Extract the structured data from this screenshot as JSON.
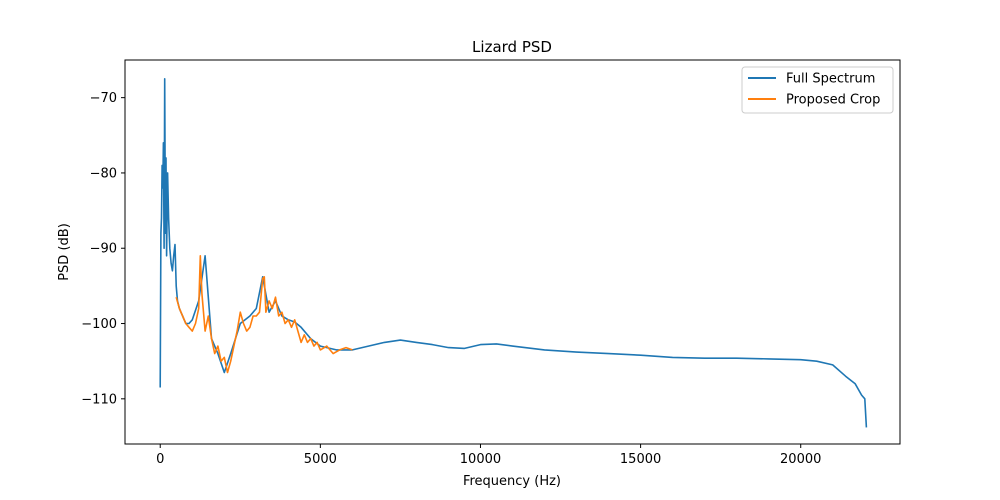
{
  "chart_data": {
    "type": "line",
    "title": "Lizard PSD",
    "xlabel": "Frequency (Hz)",
    "ylabel": "PSD (dB)",
    "xlim": [
      -1100,
      23100
    ],
    "ylim": [
      -116,
      -65
    ],
    "xticks": [
      0,
      5000,
      10000,
      15000,
      20000
    ],
    "yticks": [
      -70,
      -80,
      -90,
      -100,
      -110
    ],
    "grid": false,
    "legend": "top-right",
    "colors": {
      "full": "#1f77b4",
      "crop": "#ff7f0e"
    },
    "series": [
      {
        "name": "Full Spectrum",
        "color": "#1f77b4",
        "x": [
          0,
          20,
          40,
          60,
          80,
          100,
          120,
          140,
          160,
          180,
          200,
          230,
          260,
          300,
          340,
          380,
          420,
          460,
          500,
          540,
          600,
          700,
          800,
          900,
          1000,
          1200,
          1400,
          1600,
          1800,
          2000,
          2200,
          2500,
          2800,
          3000,
          3200,
          3400,
          3600,
          3800,
          4000,
          4200,
          4400,
          4700,
          5000,
          5500,
          6000,
          6500,
          7000,
          7500,
          8000,
          8500,
          9000,
          9500,
          10000,
          10500,
          11000,
          12000,
          13000,
          14000,
          15000,
          16000,
          17000,
          18000,
          19000,
          20000,
          20500,
          21000,
          21400,
          21700,
          21900,
          22000,
          22050
        ],
        "y": [
          -108.5,
          -88,
          -86,
          -79,
          -82,
          -76,
          -90,
          -67.5,
          -88,
          -78,
          -91,
          -80,
          -86,
          -90,
          -92,
          -93,
          -91,
          -89.5,
          -95,
          -97,
          -98,
          -99,
          -100,
          -100,
          -99.5,
          -97,
          -91,
          -102,
          -104,
          -106.5,
          -104,
          -100,
          -99,
          -98,
          -93.8,
          -98.5,
          -97,
          -99,
          -99.5,
          -99.8,
          -100.5,
          -102,
          -103,
          -103.5,
          -103.5,
          -103,
          -102.5,
          -102.2,
          -102.5,
          -102.8,
          -103.2,
          -103.3,
          -102.8,
          -102.7,
          -103,
          -103.5,
          -103.8,
          -104,
          -104.2,
          -104.5,
          -104.6,
          -104.6,
          -104.7,
          -104.8,
          -105,
          -105.5,
          -107,
          -108,
          -109.5,
          -110,
          -113.8
        ]
      },
      {
        "name": "Proposed Crop",
        "color": "#ff7f0e",
        "x": [
          500,
          600,
          700,
          800,
          900,
          1000,
          1100,
          1200,
          1250,
          1300,
          1400,
          1500,
          1600,
          1700,
          1800,
          1900,
          2000,
          2100,
          2200,
          2300,
          2400,
          2500,
          2600,
          2700,
          2800,
          2900,
          3000,
          3100,
          3200,
          3250,
          3300,
          3400,
          3500,
          3600,
          3700,
          3800,
          3900,
          4000,
          4100,
          4200,
          4300,
          4400,
          4500,
          4600,
          4700,
          4800,
          4900,
          5000,
          5200,
          5400,
          5600,
          5800,
          6000
        ],
        "y": [
          -96.5,
          -98,
          -99,
          -100,
          -100.5,
          -101,
          -100,
          -98,
          -91,
          -96,
          -101,
          -99,
          -102,
          -104,
          -103,
          -105,
          -104.5,
          -106.5,
          -105,
          -103,
          -101,
          -98.5,
          -100,
          -101,
          -100.5,
          -99,
          -99,
          -98.5,
          -94,
          -93.8,
          -98.5,
          -97,
          -98,
          -96.5,
          -99,
          -98.5,
          -100,
          -99.5,
          -100.5,
          -99.5,
          -101,
          -102.5,
          -101.5,
          -102.5,
          -102,
          -103,
          -102.5,
          -103.5,
          -103,
          -104,
          -103.5,
          -103.2,
          -103.5
        ]
      }
    ]
  }
}
